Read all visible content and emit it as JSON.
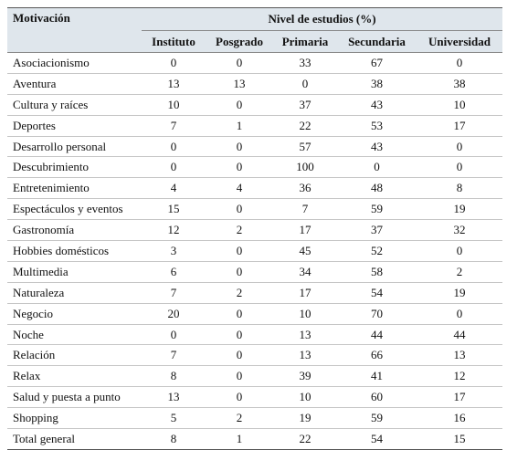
{
  "table": {
    "header": {
      "motivation": "Motivación",
      "group": "Nivel de estudios (%)",
      "columns": [
        "Instituto",
        "Posgrado",
        "Primaria",
        "Secundaria",
        "Universidad"
      ]
    },
    "rows": [
      {
        "name": "Asociacionismo",
        "values": [
          "0",
          "0",
          "33",
          "67",
          "0"
        ]
      },
      {
        "name": "Aventura",
        "values": [
          "13",
          "13",
          "0",
          "38",
          "38"
        ]
      },
      {
        "name": "Cultura y raíces",
        "values": [
          "10",
          "0",
          "37",
          "43",
          "10"
        ]
      },
      {
        "name": "Deportes",
        "values": [
          "7",
          "1",
          "22",
          "53",
          "17"
        ]
      },
      {
        "name": "Desarrollo personal",
        "values": [
          "0",
          "0",
          "57",
          "43",
          "0"
        ]
      },
      {
        "name": "Descubrimiento",
        "values": [
          "0",
          "0",
          "100",
          "0",
          "0"
        ]
      },
      {
        "name": "Entretenimiento",
        "values": [
          "4",
          "4",
          "36",
          "48",
          "8"
        ]
      },
      {
        "name": "Espectáculos y eventos",
        "values": [
          "15",
          "0",
          "7",
          "59",
          "19"
        ]
      },
      {
        "name": "Gastronomía",
        "values": [
          "12",
          "2",
          "17",
          "37",
          "32"
        ]
      },
      {
        "name": "Hobbies domésticos",
        "values": [
          "3",
          "0",
          "45",
          "52",
          "0"
        ]
      },
      {
        "name": "Multimedia",
        "values": [
          "6",
          "0",
          "34",
          "58",
          "2"
        ]
      },
      {
        "name": "Naturaleza",
        "values": [
          "7",
          "2",
          "17",
          "54",
          "19"
        ]
      },
      {
        "name": "Negocio",
        "values": [
          "20",
          "0",
          "10",
          "70",
          "0"
        ]
      },
      {
        "name": "Noche",
        "values": [
          "0",
          "0",
          "13",
          "44",
          "44"
        ]
      },
      {
        "name": "Relación",
        "values": [
          "7",
          "0",
          "13",
          "66",
          "13"
        ]
      },
      {
        "name": "Relax",
        "values": [
          "8",
          "0",
          "39",
          "41",
          "12"
        ]
      },
      {
        "name": "Salud y puesta a punto",
        "values": [
          "13",
          "0",
          "10",
          "60",
          "17"
        ]
      },
      {
        "name": "Shopping",
        "values": [
          "5",
          "2",
          "19",
          "59",
          "16"
        ]
      },
      {
        "name": "Total general",
        "values": [
          "8",
          "1",
          "22",
          "54",
          "15"
        ]
      }
    ]
  }
}
